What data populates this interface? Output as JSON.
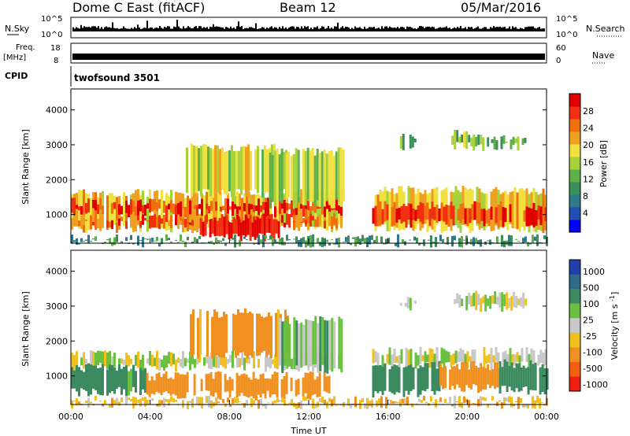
{
  "header": {
    "station": "Dome C East (fitACF)",
    "beam": "Beam 12",
    "date": "05/Mar/2016"
  },
  "top_panels": {
    "nsky_label": "N.Sky",
    "nsearch_label": "N.Search",
    "nsky_ticks": [
      "10^5",
      "10^0"
    ],
    "nsearch_ticks": [
      "10^5",
      "10^0"
    ],
    "freq_label": "Freq.",
    "freq_unit": "[MHz]",
    "freq_ticks": [
      "18",
      "8"
    ],
    "nave_label": "Nave",
    "nave_ticks": [
      "60",
      "0"
    ],
    "cpid_label": "CPID",
    "cpid_value": "twofsound 3501"
  },
  "colorbars": {
    "power": {
      "label": "Power [dB]",
      "ticks": [
        "28",
        "24",
        "20",
        "16",
        "12",
        "8",
        "4"
      ],
      "colors": [
        "#0000ff",
        "#1f4fb0",
        "#2e7a8a",
        "#3b8f5a",
        "#5fb04a",
        "#a8d23a",
        "#f0e040",
        "#f0a020",
        "#f07010",
        "#f03010",
        "#e00000"
      ]
    },
    "velocity": {
      "label": "Velocity [m s^-1]",
      "ticks": [
        "1000",
        "500",
        "100",
        "25",
        "-25",
        "-100",
        "-500",
        "-1000"
      ],
      "colors": [
        "#2040b0",
        "#2f6a8a",
        "#3c8a60",
        "#6ac040",
        "#c8c8c8",
        "#f0c020",
        "#f09020",
        "#f06010",
        "#f02010"
      ]
    }
  },
  "chart_data": {
    "type": "heatmap",
    "xlabel": "Time UT",
    "x_ticks": [
      "00:00",
      "04:00",
      "08:00",
      "12:00",
      "16:00",
      "20:00",
      "00:00"
    ],
    "x_range_hours": [
      0,
      24
    ],
    "panels": [
      {
        "name": "power",
        "ylabel": "Slant Range [km]",
        "y_ticks": [
          1000,
          2000,
          3000,
          4000
        ],
        "ylim": [
          180,
          4600
        ],
        "unit": "dB",
        "scale": [
          0,
          32
        ],
        "regions": [
          {
            "t0": 0.0,
            "t1": 13.6,
            "r0": 600,
            "r1": 1600,
            "value": 20
          },
          {
            "t0": 0.0,
            "t1": 13.6,
            "r0": 1050,
            "r1": 1350,
            "value": 28
          },
          {
            "t0": 0.0,
            "t1": 13.6,
            "r0": 700,
            "r1": 900,
            "value": 26
          },
          {
            "t0": 6.5,
            "t1": 10.5,
            "r0": 350,
            "r1": 900,
            "value": 30
          },
          {
            "t0": 5.8,
            "t1": 11.0,
            "r0": 1600,
            "r1": 2900,
            "value": 18
          },
          {
            "t0": 10.0,
            "t1": 13.8,
            "r0": 1300,
            "r1": 2800,
            "value": 16
          },
          {
            "t0": 0.0,
            "t1": 24.0,
            "r0": 180,
            "r1": 300,
            "value": 10
          },
          {
            "t0": 15.2,
            "t1": 24.0,
            "r0": 600,
            "r1": 1700,
            "value": 20
          },
          {
            "t0": 15.2,
            "t1": 24.0,
            "r0": 750,
            "r1": 1250,
            "value": 27
          },
          {
            "t0": 16.6,
            "t1": 17.4,
            "r0": 2950,
            "r1": 3200,
            "value": 12
          },
          {
            "t0": 19.2,
            "t1": 21.0,
            "r0": 2950,
            "r1": 3300,
            "value": 14
          },
          {
            "t0": 21.2,
            "t1": 22.9,
            "r0": 2950,
            "r1": 3150,
            "value": 12
          }
        ]
      },
      {
        "name": "velocity",
        "ylabel": "Slant Range [km]",
        "y_ticks": [
          1000,
          2000,
          3000,
          4000
        ],
        "ylim": [
          180,
          4600
        ],
        "unit": "m s^-1",
        "regions": [
          {
            "t0": 0.0,
            "t1": 13.6,
            "r0": 1250,
            "r1": 1600,
            "value": 0
          },
          {
            "t0": 0.0,
            "t1": 3.8,
            "r0": 550,
            "r1": 1250,
            "value": 150
          },
          {
            "t0": 3.8,
            "t1": 13.0,
            "r0": 450,
            "r1": 1000,
            "value": -200
          },
          {
            "t0": 6.0,
            "t1": 11.0,
            "r0": 1600,
            "r1": 2800,
            "value": -150
          },
          {
            "t0": 10.5,
            "t1": 13.8,
            "r0": 1200,
            "r1": 2600,
            "value": 60
          },
          {
            "t0": 0.0,
            "t1": 24.0,
            "r0": 180,
            "r1": 300,
            "value": -60
          },
          {
            "t0": 15.2,
            "t1": 24.0,
            "r0": 1300,
            "r1": 1700,
            "value": 0
          },
          {
            "t0": 15.2,
            "t1": 18.6,
            "r0": 500,
            "r1": 1300,
            "value": 200
          },
          {
            "t0": 18.6,
            "t1": 21.6,
            "r0": 650,
            "r1": 1300,
            "value": -200
          },
          {
            "t0": 21.6,
            "t1": 24.0,
            "r0": 600,
            "r1": 1350,
            "value": 250
          },
          {
            "t0": 16.6,
            "t1": 17.4,
            "r0": 2950,
            "r1": 3200,
            "value": 30
          },
          {
            "t0": 19.2,
            "t1": 23.0,
            "r0": 2950,
            "r1": 3300,
            "value": 0
          }
        ]
      }
    ]
  }
}
